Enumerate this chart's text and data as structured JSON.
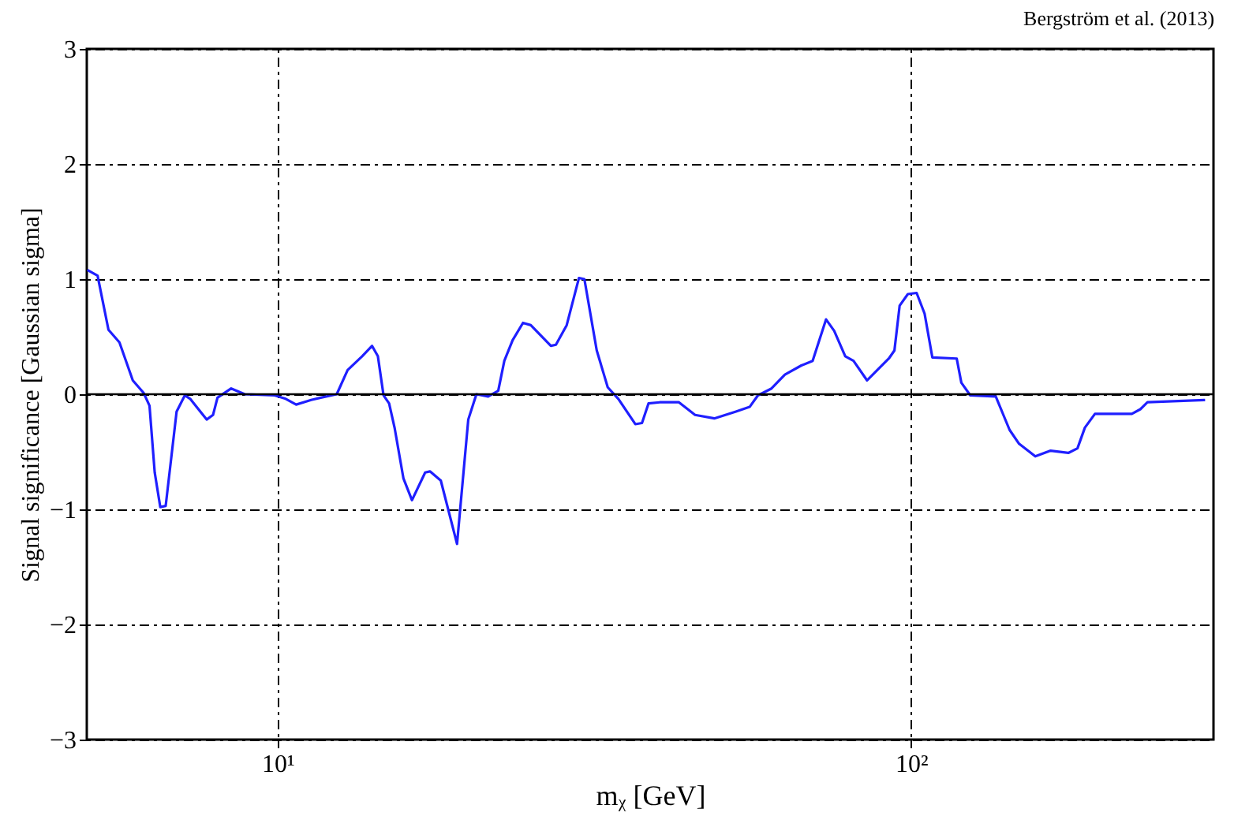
{
  "chart_data": {
    "type": "line",
    "annotations": [
      "Bergström et al. (2013)"
    ],
    "xlabel": "mᵪ [GeV]",
    "ylabel": "Signal significance [Gaussian sigma]",
    "log": "x",
    "xlim": [
      5,
      300
    ],
    "xticks": [
      {
        "value": 10,
        "label": "10¹"
      },
      {
        "value": 100,
        "label": "10²"
      }
    ],
    "ylim": [
      -3,
      3
    ],
    "yticks": [
      -3,
      -2,
      -1,
      0,
      1,
      2,
      3
    ],
    "grid": true,
    "marker": "none",
    "line_style": "solid",
    "ref_lines": [
      {
        "axis": "y",
        "value": 0,
        "color": "#000000"
      }
    ],
    "series": [
      {
        "color": "#1f1fff",
        "x": [
          5.01,
          5.2,
          5.41,
          5.63,
          5.91,
          6.15,
          6.28,
          6.4,
          6.53,
          6.66,
          6.93,
          7.14,
          7.28,
          7.73,
          7.91,
          8.04,
          8.45,
          8.88,
          9.9,
          10.3,
          10.7,
          11.3,
          11.7,
          12.4,
          12.9,
          13.6,
          14.1,
          14.4,
          14.7,
          15.0,
          15.3,
          15.8,
          16.3,
          17.1,
          17.4,
          18.1,
          19.2,
          20.0,
          20.6,
          21.5,
          22.3,
          22.8,
          23.5,
          24.4,
          25.1,
          27.0,
          27.5,
          28.6,
          29.9,
          30.5,
          31.9,
          33.2,
          34.5,
          36.7,
          37.6,
          38.5,
          40.1,
          43.0,
          45.6,
          48.9,
          52.9,
          55.6,
          57.3,
          60.2,
          63.2,
          67.1,
          69.9,
          73.4,
          75.6,
          78.7,
          81.1,
          85.2,
          92.2,
          94.1,
          95.9,
          98.8,
          102,
          105,
          108,
          118,
          120,
          124,
          136,
          143,
          148,
          157,
          166,
          177,
          183,
          188,
          195,
          223,
          230,
          236,
          291
        ],
        "values": [
          1.08,
          1.03,
          0.56,
          0.45,
          0.12,
          0.01,
          -0.1,
          -0.68,
          -0.98,
          -0.97,
          -0.15,
          -0.01,
          -0.04,
          -0.22,
          -0.18,
          -0.03,
          0.05,
          0.0,
          -0.01,
          -0.04,
          -0.09,
          -0.05,
          -0.03,
          0.0,
          0.21,
          0.33,
          0.42,
          0.33,
          -0.01,
          -0.08,
          -0.29,
          -0.73,
          -0.92,
          -0.68,
          -0.67,
          -0.75,
          -1.3,
          -0.22,
          0.0,
          -0.02,
          0.03,
          0.29,
          0.47,
          0.62,
          0.6,
          0.42,
          0.43,
          0.6,
          1.01,
          1.0,
          0.38,
          0.06,
          -0.04,
          -0.26,
          -0.25,
          -0.08,
          -0.07,
          -0.07,
          -0.18,
          -0.21,
          -0.15,
          -0.11,
          -0.01,
          0.05,
          0.17,
          0.25,
          0.29,
          0.65,
          0.55,
          0.33,
          0.29,
          0.12,
          0.31,
          0.38,
          0.77,
          0.87,
          0.88,
          0.7,
          0.32,
          0.31,
          0.1,
          -0.01,
          -0.02,
          -0.31,
          -0.43,
          -0.54,
          -0.49,
          -0.51,
          -0.47,
          -0.29,
          -0.17,
          -0.17,
          -0.13,
          -0.07,
          -0.05
        ]
      }
    ]
  }
}
